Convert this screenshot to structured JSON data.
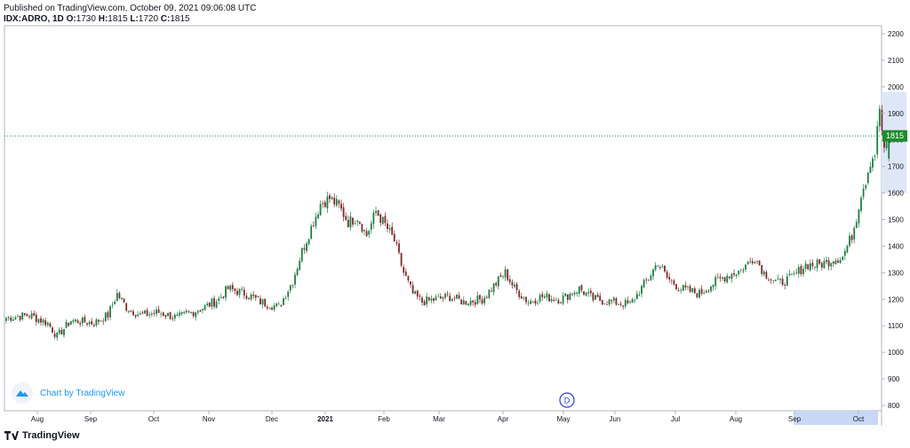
{
  "header": {
    "published": "Published on TradingView.com, October 09, 2021 09:06:08 UTC",
    "symbol": "IDX:ADRO, 1D",
    "o_label": "O:",
    "o_value": "1730",
    "h_label": "H:",
    "h_value": "1815",
    "l_label": "L:",
    "l_value": "1720",
    "c_label": "C:",
    "c_value": "1815"
  },
  "watermark": {
    "text": "Chart by TradingView"
  },
  "footer": {
    "brand": "TradingView"
  },
  "marker": {
    "label": "D"
  },
  "colors": {
    "up": "#1e7c45",
    "down": "#7b2a2a",
    "price_line": "#089981",
    "axis_text": "#131722",
    "highlight": "#c9d8f4"
  },
  "chart_data": {
    "type": "candlestick",
    "series_name": "IDX:ADRO, 1D",
    "ylim": [
      780,
      2230
    ],
    "yticks": [
      800,
      900,
      1000,
      1100,
      1200,
      1300,
      1400,
      1500,
      1600,
      1700,
      1800,
      1900,
      2000,
      2100,
      2200
    ],
    "x_months": [
      "Aug",
      "Sep",
      "Oct",
      "Nov",
      "Dec",
      "2021",
      "Feb",
      "Mar",
      "Apr",
      "May",
      "Jun",
      "Jul",
      "Aug",
      "Sep",
      "Oct"
    ],
    "last_price": 1815,
    "last_price_label": "1815",
    "highlighted_range": [
      "Sep",
      "Oct"
    ],
    "close_path": [
      [
        0,
        1130
      ],
      [
        10,
        1140
      ],
      [
        18,
        1110
      ],
      [
        22,
        1060
      ],
      [
        28,
        1120
      ],
      [
        38,
        1110
      ],
      [
        44,
        1140
      ],
      [
        48,
        1220
      ],
      [
        52,
        1170
      ],
      [
        58,
        1140
      ],
      [
        66,
        1150
      ],
      [
        74,
        1130
      ],
      [
        80,
        1150
      ],
      [
        86,
        1170
      ],
      [
        92,
        1200
      ],
      [
        96,
        1240
      ],
      [
        104,
        1220
      ],
      [
        110,
        1190
      ],
      [
        118,
        1170
      ],
      [
        124,
        1270
      ],
      [
        128,
        1380
      ],
      [
        132,
        1470
      ],
      [
        136,
        1560
      ],
      [
        140,
        1580
      ],
      [
        144,
        1550
      ],
      [
        148,
        1490
      ],
      [
        152,
        1510
      ],
      [
        156,
        1440
      ],
      [
        160,
        1530
      ],
      [
        164,
        1480
      ],
      [
        168,
        1420
      ],
      [
        172,
        1300
      ],
      [
        176,
        1220
      ],
      [
        180,
        1190
      ],
      [
        186,
        1200
      ],
      [
        192,
        1210
      ],
      [
        198,
        1190
      ],
      [
        206,
        1200
      ],
      [
        212,
        1260
      ],
      [
        216,
        1300
      ],
      [
        220,
        1240
      ],
      [
        226,
        1190
      ],
      [
        232,
        1210
      ],
      [
        240,
        1200
      ],
      [
        248,
        1240
      ],
      [
        254,
        1200
      ],
      [
        262,
        1190
      ],
      [
        270,
        1180
      ],
      [
        278,
        1280
      ],
      [
        282,
        1340
      ],
      [
        286,
        1280
      ],
      [
        292,
        1240
      ],
      [
        300,
        1220
      ],
      [
        306,
        1260
      ],
      [
        312,
        1290
      ],
      [
        318,
        1310
      ],
      [
        324,
        1360
      ],
      [
        328,
        1300
      ],
      [
        334,
        1260
      ],
      [
        340,
        1280
      ],
      [
        346,
        1330
      ],
      [
        352,
        1330
      ],
      [
        358,
        1350
      ],
      [
        362,
        1360
      ],
      [
        366,
        1440
      ],
      [
        368,
        1510
      ],
      [
        370,
        1600
      ],
      [
        372,
        1650
      ],
      [
        374,
        1720
      ],
      [
        376,
        1750
      ],
      [
        378,
        1920
      ],
      [
        380,
        1750
      ],
      [
        382,
        1815
      ]
    ]
  }
}
